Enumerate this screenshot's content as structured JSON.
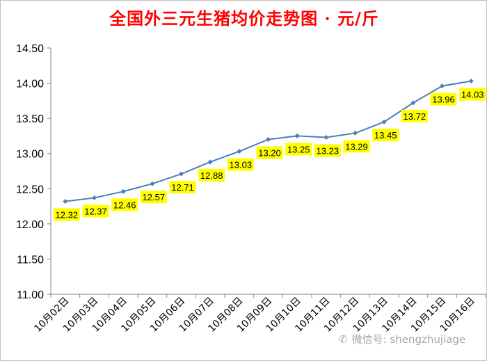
{
  "title": "全国外三元生猪均价走势图 · 元/斤",
  "watermark": "微信号: shengzhujiage",
  "colors": {
    "line": "#4a7ebb",
    "label_bg": "#ffff00",
    "title": "#ff0000",
    "axis": "#868686"
  },
  "chart_data": {
    "type": "line",
    "title": "全国外三元生猪均价走势图 · 元/斤",
    "xlabel": "",
    "ylabel": "",
    "categories": [
      "10月02日",
      "10月03日",
      "10月04日",
      "10月05日",
      "10月06日",
      "10月07日",
      "10月08日",
      "10月09日",
      "10月10日",
      "10月11日",
      "10月12日",
      "10月13日",
      "10月14日",
      "10月15日",
      "10月16日"
    ],
    "series": [
      {
        "values": [
          12.32,
          12.37,
          12.46,
          12.57,
          12.71,
          12.88,
          13.03,
          13.2,
          13.25,
          13.23,
          13.29,
          13.45,
          13.72,
          13.96,
          14.03
        ]
      }
    ],
    "value_labels": [
      "12.32",
      "12.37",
      "12.46",
      "12.57",
      "12.71",
      "12.88",
      "13.03",
      "13.20",
      "13.25",
      "13.23",
      "13.29",
      "13.45",
      "13.72",
      "13.96",
      "14.03"
    ],
    "ylim": [
      11.0,
      14.5
    ],
    "yticks": [
      "11.00",
      "11.50",
      "12.00",
      "12.50",
      "13.00",
      "13.50",
      "14.00",
      "14.50"
    ],
    "grid": false,
    "legend": "none",
    "marker": "diamond"
  }
}
